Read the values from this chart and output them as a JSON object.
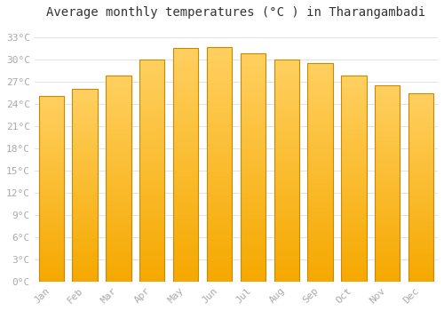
{
  "months": [
    "Jan",
    "Feb",
    "Mar",
    "Apr",
    "May",
    "Jun",
    "Jul",
    "Aug",
    "Sep",
    "Oct",
    "Nov",
    "Dec"
  ],
  "temperatures": [
    25.0,
    26.0,
    27.8,
    30.0,
    31.5,
    31.6,
    30.8,
    30.0,
    29.5,
    27.8,
    26.5,
    25.4
  ],
  "bar_color_top": "#FFD060",
  "bar_color_bottom": "#F5A800",
  "bar_edge_color": "#CC8800",
  "background_color": "#FFFFFF",
  "plot_bg_color": "#FFFFFF",
  "grid_color": "#DDDDDD",
  "title": "Average monthly temperatures (°C ) in Tharangambadi",
  "title_fontsize": 10,
  "tick_label_color": "#AAAAAA",
  "tick_fontsize": 8,
  "ytick_values": [
    0,
    3,
    6,
    9,
    12,
    15,
    18,
    21,
    24,
    27,
    30,
    33
  ],
  "ytick_labels": [
    "0°C",
    "3°C",
    "6°C",
    "9°C",
    "12°C",
    "15°C",
    "18°C",
    "21°C",
    "24°C",
    "27°C",
    "30°C",
    "33°C"
  ],
  "ylim": [
    0,
    34.5
  ],
  "bar_width": 0.75
}
